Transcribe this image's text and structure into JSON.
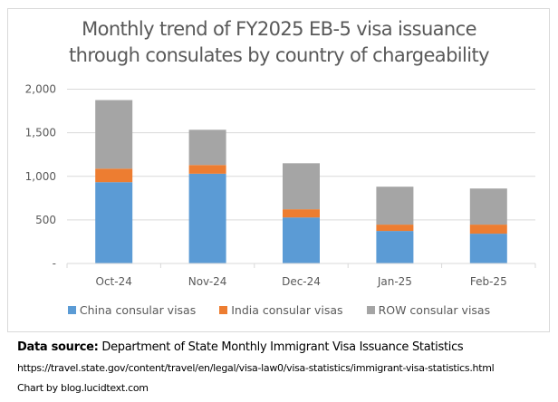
{
  "chart_data": {
    "type": "bar",
    "stacked": true,
    "title": "Monthly trend of FY2025 EB-5 visa issuance through consulates by country of chargeability",
    "title_lines": [
      "Monthly trend of FY2025 EB-5 visa issuance",
      "through consulates by country of chargeability"
    ],
    "xlabel": "",
    "ylabel": "",
    "categories": [
      "Oct-24",
      "Nov-24",
      "Dec-24",
      "Jan-25",
      "Feb-25"
    ],
    "series": [
      {
        "name": "China consular visas",
        "color": "#5b9bd5",
        "values": [
          933,
          1030,
          528,
          373,
          342
        ]
      },
      {
        "name": "India consular visas",
        "color": "#ed7d31",
        "values": [
          155,
          100,
          94,
          73,
          104
        ]
      },
      {
        "name": "ROW consular visas",
        "color": "#a5a5a5",
        "values": [
          787,
          404,
          528,
          435,
          414
        ]
      }
    ],
    "ylim": [
      0,
      2000
    ],
    "yticks": [
      0,
      500,
      1000,
      1500,
      2000
    ],
    "ytick_labels": [
      "-",
      "500",
      "1,000",
      "1,500",
      "2,000"
    ],
    "grid": true,
    "legend_position": "bottom"
  },
  "footer": {
    "source_label": "Data source:",
    "source_text": " Department of State Monthly Immigrant Visa Issuance Statistics",
    "url": "https://travel.state.gov/content/travel/en/legal/visa-law0/visa-statistics/immigrant-visa-statistics.html",
    "credit": "Chart by blog.lucidtext.com"
  }
}
